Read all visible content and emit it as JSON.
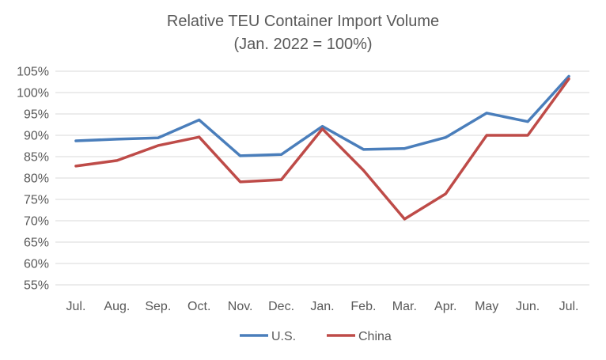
{
  "chart_data": {
    "type": "line",
    "title": "Relative TEU Container Import  Volume",
    "subtitle": "(Jan. 2022 = 100%)",
    "xlabel": "",
    "ylabel": "",
    "categories": [
      "Jul.",
      "Aug.",
      "Sep.",
      "Oct.",
      "Nov.",
      "Dec.",
      "Jan.",
      "Feb.",
      "Mar.",
      "Apr.",
      "May",
      "Jun.",
      "Jul."
    ],
    "ylim": [
      55,
      105
    ],
    "ytick_step": 5,
    "ytick_labels": [
      "55%",
      "60%",
      "65%",
      "70%",
      "75%",
      "80%",
      "85%",
      "90%",
      "95%",
      "100%",
      "105%"
    ],
    "grid": true,
    "legend_position": "bottom",
    "series": [
      {
        "name": "U.S.",
        "color": "#4a7ebb",
        "values": [
          88.7,
          89.1,
          89.4,
          93.6,
          85.2,
          85.5,
          92.1,
          86.7,
          86.9,
          89.5,
          95.2,
          93.2,
          103.8
        ]
      },
      {
        "name": "China",
        "color": "#be4b48",
        "values": [
          82.8,
          84.1,
          87.6,
          89.6,
          79.1,
          79.6,
          91.5,
          81.8,
          70.4,
          76.3,
          90.0,
          90.0,
          103.2
        ]
      }
    ]
  },
  "colors": {
    "grid": "#d9d9d9",
    "axis": "#d9d9d9",
    "text": "#595959"
  }
}
